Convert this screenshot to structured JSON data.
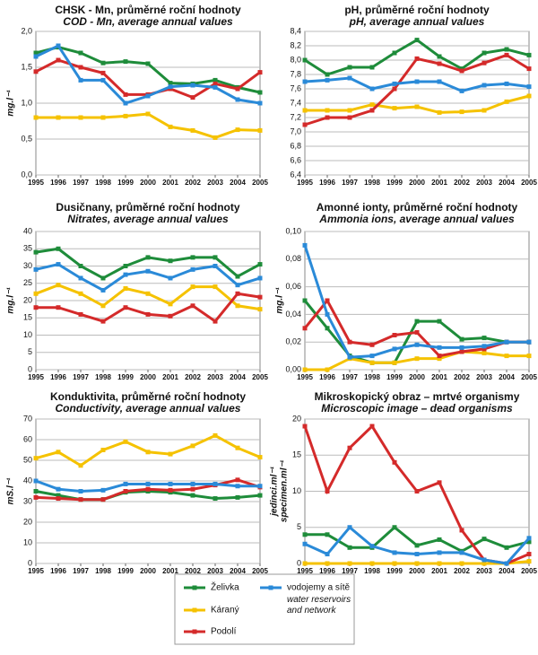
{
  "legend": [
    {
      "name": "Želivka",
      "color": "#1e8c3a"
    },
    {
      "name": "Káraný",
      "color": "#f5c200"
    },
    {
      "name": "Podolí",
      "color": "#d42a2a"
    },
    {
      "name": "vodojemy a sítě",
      "name_en": "water reservoirs and network",
      "color": "#2a8ad8"
    }
  ],
  "chart_data": [
    {
      "type": "line",
      "title": "CHSK - Mn, průměrné roční hodnoty",
      "subtitle": "COD - Mn, average annual values",
      "y_label": "mg.l⁻¹",
      "categories": [
        "1995",
        "1996",
        "1997",
        "1998",
        "1999",
        "2000",
        "2001",
        "2002",
        "2003",
        "2004",
        "2005"
      ],
      "ylim": [
        0,
        2
      ],
      "yticks": [
        {
          "value": 0,
          "label": "0,0"
        },
        {
          "value": 0.5,
          "label": "0,5"
        },
        {
          "value": 1,
          "label": "1,0"
        },
        {
          "value": 1.5,
          "label": "1,5"
        },
        {
          "value": 2,
          "label": "2,0"
        }
      ],
      "series": [
        {
          "values": [
            1.7,
            1.78,
            1.7,
            1.56,
            1.58,
            1.55,
            1.28,
            1.27,
            1.32,
            1.22,
            1.15
          ]
        },
        {
          "values": [
            0.8,
            0.8,
            0.8,
            0.8,
            0.82,
            0.85,
            0.67,
            0.62,
            0.52,
            0.63,
            0.62
          ]
        },
        {
          "values": [
            1.44,
            1.6,
            1.5,
            1.42,
            1.12,
            1.12,
            1.2,
            1.08,
            1.27,
            1.2,
            1.43
          ]
        },
        {
          "values": [
            1.65,
            1.8,
            1.32,
            1.32,
            1.0,
            1.1,
            1.23,
            1.25,
            1.22,
            1.05,
            1.0
          ]
        }
      ]
    },
    {
      "type": "line",
      "title": "pH, průměrné roční hodnoty",
      "subtitle": "pH, average annual values",
      "categories": [
        "1995",
        "1996",
        "1997",
        "1998",
        "1999",
        "2000",
        "2001",
        "2002",
        "2003",
        "2004",
        "2005"
      ],
      "ylim": [
        6.4,
        8.4
      ],
      "yticks": [
        {
          "value": 6.4,
          "label": "6,4"
        },
        {
          "value": 6.6,
          "label": "6,6"
        },
        {
          "value": 6.8,
          "label": "6,8"
        },
        {
          "value": 7.0,
          "label": "7,0"
        },
        {
          "value": 7.2,
          "label": "7,2"
        },
        {
          "value": 7.4,
          "label": "7,4"
        },
        {
          "value": 7.6,
          "label": "7,6"
        },
        {
          "value": 7.8,
          "label": "7,8"
        },
        {
          "value": 8.0,
          "label": "8,0"
        },
        {
          "value": 8.2,
          "label": "8,2"
        },
        {
          "value": 8.4,
          "label": "8,4"
        }
      ],
      "series": [
        {
          "values": [
            8.0,
            7.8,
            7.9,
            7.9,
            8.1,
            8.28,
            8.05,
            7.88,
            8.1,
            8.15,
            8.07
          ]
        },
        {
          "values": [
            7.3,
            7.3,
            7.3,
            7.38,
            7.33,
            7.35,
            7.27,
            7.28,
            7.3,
            7.42,
            7.5
          ]
        },
        {
          "values": [
            7.1,
            7.2,
            7.2,
            7.3,
            7.6,
            8.02,
            7.95,
            7.85,
            7.96,
            8.07,
            7.88
          ]
        },
        {
          "values": [
            7.7,
            7.72,
            7.75,
            7.6,
            7.67,
            7.7,
            7.7,
            7.57,
            7.65,
            7.67,
            7.63
          ]
        }
      ]
    },
    {
      "type": "line",
      "title": "Dusičnany, průměrné roční hodnoty",
      "subtitle": "Nitrates, average annual values",
      "y_label": "mg.l⁻¹",
      "categories": [
        "1995",
        "1996",
        "1997",
        "1998",
        "1999",
        "2000",
        "2001",
        "2002",
        "2003",
        "2004",
        "2005"
      ],
      "ylim": [
        0,
        40
      ],
      "yticks": [
        0,
        5,
        10,
        15,
        20,
        25,
        30,
        35,
        40
      ],
      "series": [
        {
          "values": [
            34,
            35,
            30,
            26.5,
            30,
            32.5,
            31.5,
            32.5,
            32.5,
            27,
            30.5
          ]
        },
        {
          "values": [
            22,
            24.5,
            22,
            18.5,
            23.5,
            22,
            19,
            24,
            24,
            18.5,
            17.5
          ]
        },
        {
          "values": [
            18,
            18,
            16,
            14,
            18,
            16,
            15.5,
            18.5,
            14,
            22,
            21
          ]
        },
        {
          "values": [
            29,
            30.5,
            26.5,
            23,
            27.5,
            28.5,
            26.5,
            29,
            30,
            24.5,
            26.5
          ]
        }
      ]
    },
    {
      "type": "line",
      "title": "Amonné ionty, průměrné roční hodnoty",
      "subtitle": "Ammonia ions, average annual values",
      "y_label": "mg.l⁻¹",
      "categories": [
        "1995",
        "1996",
        "1997",
        "1998",
        "1999",
        "2000",
        "2001",
        "2002",
        "2003",
        "2004",
        "2005"
      ],
      "ylim": [
        0,
        0.1
      ],
      "yticks": [
        {
          "value": 0,
          "label": "0,00"
        },
        {
          "value": 0.02,
          "label": "0,02"
        },
        {
          "value": 0.04,
          "label": "0,04"
        },
        {
          "value": 0.06,
          "label": "0,06"
        },
        {
          "value": 0.08,
          "label": "0,08"
        },
        {
          "value": 0.1,
          "label": "0,10"
        }
      ],
      "series": [
        {
          "values": [
            0.05,
            0.03,
            0.01,
            0.005,
            0.005,
            0.035,
            0.035,
            0.022,
            0.023,
            0.02,
            0.02
          ]
        },
        {
          "values": [
            0,
            0,
            0.008,
            0.005,
            0.005,
            0.008,
            0.008,
            0.013,
            0.012,
            0.01,
            0.01
          ]
        },
        {
          "values": [
            0.03,
            0.05,
            0.02,
            0.018,
            0.025,
            0.027,
            0.01,
            0.013,
            0.015,
            0.02,
            0.02
          ]
        },
        {
          "values": [
            0.09,
            0.04,
            0.009,
            0.01,
            0.015,
            0.018,
            0.016,
            0.016,
            0.017,
            0.02,
            0.02
          ]
        }
      ]
    },
    {
      "type": "line",
      "title": "Konduktivita, průměrné roční hodnoty",
      "subtitle": "Conductivity, average annual values",
      "y_label": "mS.l⁻¹",
      "categories": [
        "1995",
        "1996",
        "1997",
        "1998",
        "1999",
        "2000",
        "2001",
        "2002",
        "2003",
        "2004",
        "2005"
      ],
      "ylim": [
        0,
        70
      ],
      "yticks": [
        0,
        10,
        20,
        30,
        40,
        50,
        60,
        70
      ],
      "series": [
        {
          "values": [
            35,
            33,
            31,
            31,
            34.5,
            35,
            34.5,
            33,
            31.5,
            32,
            33
          ]
        },
        {
          "values": [
            51,
            54,
            47.5,
            55,
            59,
            54,
            53,
            57,
            62,
            56,
            51.5
          ]
        },
        {
          "values": [
            32,
            31.5,
            31,
            31,
            35,
            36,
            35.5,
            36,
            38,
            40.5,
            37
          ]
        },
        {
          "values": [
            40,
            36,
            35,
            35.5,
            38.5,
            38.5,
            38.5,
            38.5,
            38.5,
            37.5,
            37.5
          ]
        }
      ]
    },
    {
      "type": "line",
      "title": "Mikroskopický obraz – mrtvé organismy",
      "subtitle": "Microscopic image – dead organisms",
      "y_label": "jedinci.ml⁻¹",
      "y_label_en": "specimen.ml⁻¹",
      "categories": [
        "1995",
        "1996",
        "1997",
        "1998",
        "1999",
        "2000",
        "2001",
        "2002",
        "2003",
        "2004",
        "2005"
      ],
      "ylim": [
        0,
        20
      ],
      "yticks": [
        0,
        5,
        10,
        15,
        20
      ],
      "series": [
        {
          "values": [
            4,
            4,
            2.2,
            2.2,
            5,
            2.5,
            3.3,
            1.7,
            3.4,
            2.2,
            3
          ]
        },
        {
          "values": [
            0,
            0,
            0,
            0,
            0,
            0,
            0,
            0,
            0,
            0,
            0.3
          ]
        },
        {
          "values": [
            19,
            10,
            16,
            19,
            14,
            10,
            11.2,
            4.6,
            0.5,
            0,
            1.3
          ]
        },
        {
          "values": [
            2.7,
            1.3,
            5,
            2.4,
            1.5,
            1.3,
            1.5,
            1.5,
            0.5,
            0,
            3.5
          ]
        }
      ]
    }
  ]
}
